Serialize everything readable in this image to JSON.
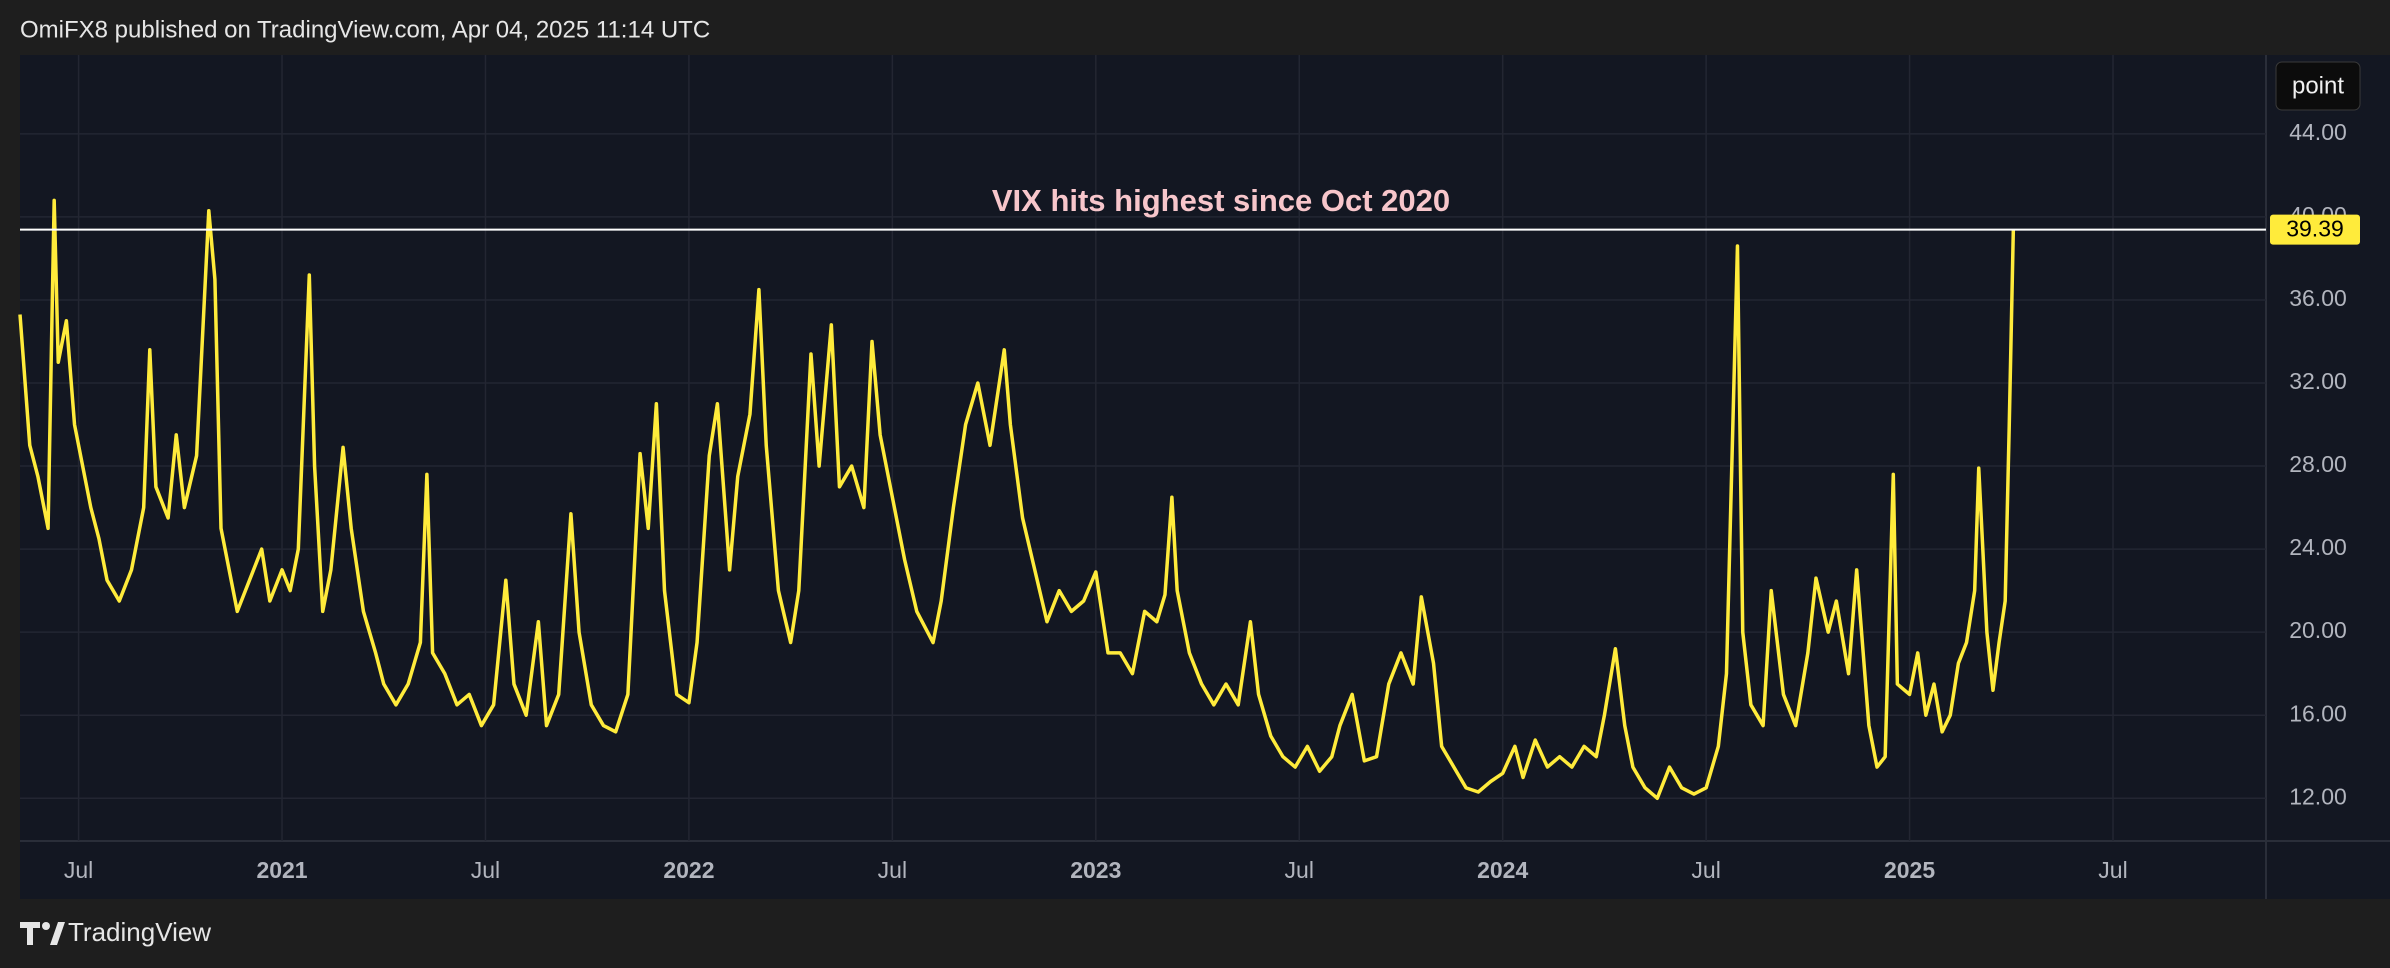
{
  "header": "OmiFX8 published on TradingView.com, Apr 04, 2025 11:14 UTC",
  "brand": "TradingView",
  "chart_data": {
    "type": "line",
    "annotation": "VIX hits highest since Oct 2020",
    "unit_button": "point",
    "last_price": 39.39,
    "grid": true,
    "xlim": [
      2020.356,
      2025.876
    ],
    "ylim": [
      9.94,
      47.8
    ],
    "xticks": [
      {
        "value": 2020.5,
        "label": "Jul"
      },
      2021,
      {
        "value": 2021.5,
        "label": "Jul"
      },
      2022,
      {
        "value": 2022.5,
        "label": "Jul"
      },
      2023,
      {
        "value": 2023.5,
        "label": "Jul"
      },
      2024,
      {
        "value": 2024.5,
        "label": "Jul"
      },
      2025,
      {
        "value": 2025.5,
        "label": "Jul"
      }
    ],
    "yticks": [
      {
        "value": 12,
        "label": "12.00"
      },
      {
        "value": 16,
        "label": "16.00"
      },
      {
        "value": 20,
        "label": "20.00"
      },
      {
        "value": 24,
        "label": "24.00"
      },
      {
        "value": 28,
        "label": "28.00"
      },
      {
        "value": 32,
        "label": "32.00"
      },
      {
        "value": 36,
        "label": "36.00"
      },
      {
        "value": 40,
        "label": "40.00"
      },
      {
        "value": 44,
        "label": "44.00"
      }
    ],
    "x": [
      2020.356,
      2020.38,
      2020.4,
      2020.425,
      2020.44,
      2020.45,
      2020.47,
      2020.49,
      2020.51,
      2020.53,
      2020.55,
      2020.57,
      2020.6,
      2020.63,
      2020.66,
      2020.675,
      2020.69,
      2020.72,
      2020.74,
      2020.76,
      2020.79,
      2020.82,
      2020.835,
      2020.85,
      2020.87,
      2020.89,
      2020.92,
      2020.95,
      2020.97,
      2021.0,
      2021.02,
      2021.04,
      2021.067,
      2021.08,
      2021.1,
      2021.12,
      2021.15,
      2021.17,
      2021.2,
      2021.23,
      2021.25,
      2021.28,
      2021.31,
      2021.34,
      2021.356,
      2021.37,
      2021.4,
      2021.43,
      2021.46,
      2021.49,
      2021.52,
      2021.55,
      2021.57,
      2021.6,
      2021.63,
      2021.65,
      2021.68,
      2021.71,
      2021.73,
      2021.76,
      2021.79,
      2021.82,
      2021.85,
      2021.88,
      2021.9,
      2021.92,
      2021.94,
      2021.97,
      2022.0,
      2022.02,
      2022.05,
      2022.07,
      2022.1,
      2022.12,
      2022.15,
      2022.172,
      2022.19,
      2022.22,
      2022.25,
      2022.27,
      2022.3,
      2022.32,
      2022.35,
      2022.37,
      2022.4,
      2022.43,
      2022.45,
      2022.47,
      2022.5,
      2022.53,
      2022.56,
      2022.6,
      2022.62,
      2022.65,
      2022.68,
      2022.71,
      2022.74,
      2022.775,
      2022.79,
      2022.82,
      2022.85,
      2022.88,
      2022.91,
      2022.94,
      2022.97,
      2023.0,
      2023.03,
      2023.06,
      2023.09,
      2023.12,
      2023.15,
      2023.17,
      2023.187,
      2023.2,
      2023.23,
      2023.26,
      2023.29,
      2023.32,
      2023.35,
      2023.38,
      2023.4,
      2023.43,
      2023.46,
      2023.49,
      2023.52,
      2023.55,
      2023.58,
      2023.6,
      2023.63,
      2023.66,
      2023.69,
      2023.72,
      2023.75,
      2023.78,
      2023.8,
      2023.83,
      2023.85,
      2023.88,
      2023.91,
      2023.94,
      2023.97,
      2024.0,
      2024.03,
      2024.05,
      2024.08,
      2024.11,
      2024.14,
      2024.17,
      2024.2,
      2024.23,
      2024.25,
      2024.277,
      2024.3,
      2024.32,
      2024.35,
      2024.38,
      2024.41,
      2024.44,
      2024.47,
      2024.5,
      2024.53,
      2024.55,
      2024.577,
      2024.59,
      2024.61,
      2024.64,
      2024.66,
      2024.69,
      2024.72,
      2024.75,
      2024.77,
      2024.8,
      2024.82,
      2024.85,
      2024.87,
      2024.9,
      2024.92,
      2024.94,
      2024.96,
      2024.97,
      2025.0,
      2025.02,
      2025.04,
      2025.06,
      2025.08,
      2025.1,
      2025.12,
      2025.14,
      2025.16,
      2025.17,
      2025.18,
      2025.19,
      2025.205,
      2025.22,
      2025.235,
      2025.245,
      2025.255
    ],
    "series": [
      {
        "name": "VIX",
        "color": "#ffeb3b",
        "values": [
          35.3,
          29,
          27.5,
          25,
          40.8,
          33,
          35,
          30,
          28,
          26,
          24.5,
          22.5,
          21.5,
          23,
          26,
          33.6,
          27,
          25.5,
          29.5,
          26,
          28.5,
          40.3,
          37,
          25,
          23,
          21,
          22.5,
          24,
          21.5,
          23,
          22,
          24,
          37.2,
          28,
          21,
          23,
          28.9,
          25,
          21,
          19,
          17.5,
          16.5,
          17.5,
          19.5,
          27.6,
          19,
          18,
          16.5,
          17,
          15.5,
          16.5,
          22.5,
          17.5,
          16,
          20.5,
          15.5,
          17,
          25.7,
          20,
          16.5,
          15.5,
          15.2,
          17,
          28.6,
          25,
          31,
          22,
          17,
          16.6,
          19.5,
          28.5,
          31,
          23,
          27.5,
          30.5,
          36.5,
          29,
          22,
          19.5,
          22,
          33.4,
          28,
          34.8,
          27,
          28,
          26,
          34,
          29.5,
          26.5,
          23.5,
          21,
          19.5,
          21.5,
          26,
          30,
          32,
          29,
          33.6,
          30,
          25.5,
          23,
          20.5,
          22,
          21,
          21.5,
          22.9,
          19,
          19,
          18,
          21,
          20.5,
          21.8,
          26.5,
          22,
          19,
          17.5,
          16.5,
          17.5,
          16.5,
          20.5,
          17,
          15,
          14,
          13.5,
          14.5,
          13.3,
          14,
          15.5,
          17,
          13.8,
          14,
          17.5,
          19,
          17.5,
          21.7,
          18.5,
          14.5,
          13.5,
          12.5,
          12.3,
          12.8,
          13.2,
          14.5,
          13,
          14.8,
          13.5,
          14,
          13.5,
          14.5,
          14,
          16,
          19.2,
          15.5,
          13.5,
          12.5,
          12,
          13.5,
          12.5,
          12.2,
          12.5,
          14.5,
          18,
          38.6,
          20,
          16.5,
          15.5,
          22,
          17,
          15.5,
          19,
          22.6,
          20,
          21.5,
          18,
          23,
          15.5,
          13.5,
          14,
          27.6,
          17.5,
          17,
          19,
          16,
          17.5,
          15.2,
          16,
          18.5,
          19.5,
          22,
          27.9,
          24,
          20,
          17.2,
          19.5,
          21.5,
          30,
          39.39
        ]
      }
    ]
  }
}
